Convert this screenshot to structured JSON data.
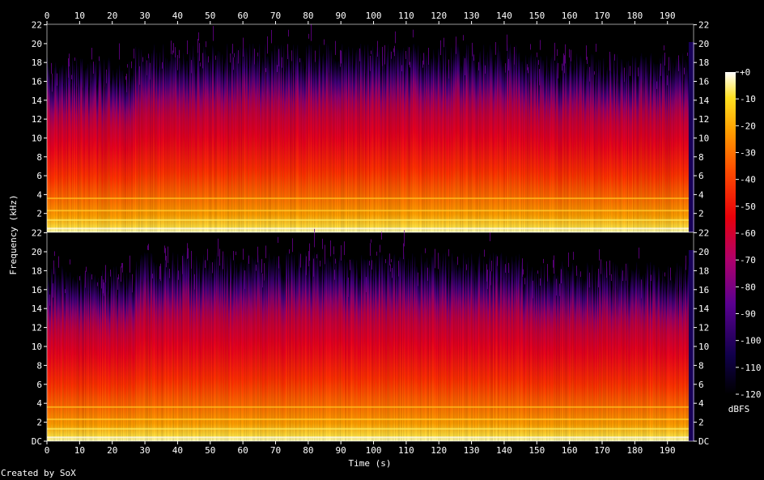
{
  "chart_data": {
    "type": "heatmap",
    "subtype": "spectrogram",
    "channels": 2,
    "x": {
      "label": "Time (s)",
      "range": [
        0,
        198
      ],
      "ticks": [
        0,
        10,
        20,
        30,
        40,
        50,
        60,
        70,
        80,
        90,
        100,
        110,
        120,
        130,
        140,
        150,
        160,
        170,
        180,
        190
      ]
    },
    "y": {
      "label": "Frequency (kHz)",
      "range": [
        0,
        22.05
      ],
      "ticks": [
        "DC",
        "2",
        "4",
        "6",
        "8",
        "10",
        "12",
        "14",
        "16",
        "18",
        "20",
        "22"
      ],
      "tick_values": [
        0,
        2,
        4,
        6,
        8,
        10,
        12,
        14,
        16,
        18,
        20,
        22
      ]
    },
    "colorbar": {
      "label": "dBFS",
      "range": [
        -120,
        0
      ],
      "ticks": [
        "+0",
        "-10",
        "-20",
        "-30",
        "-40",
        "-50",
        "-60",
        "-70",
        "-80",
        "-90",
        "-100",
        "-110",
        "-120"
      ]
    },
    "audio_end_s": 196.5,
    "lowpass_cutoff_khz": [
      {
        "t": [
          0,
          27
        ],
        "khz": 18.5
      },
      {
        "t": [
          27,
          66
        ],
        "khz": 20
      },
      {
        "t": [
          66,
          120
        ],
        "khz": 20
      },
      {
        "t": [
          120,
          145
        ],
        "khz": 20
      },
      {
        "t": [
          145,
          196
        ],
        "khz": 19
      }
    ],
    "energy_segments": [
      {
        "t": [
          0,
          27
        ],
        "level": "medium"
      },
      {
        "t": [
          27,
          66
        ],
        "level": "high"
      },
      {
        "t": [
          66,
          118
        ],
        "level": "high"
      },
      {
        "t": [
          118,
          145
        ],
        "level": "medium"
      },
      {
        "t": [
          145,
          196
        ],
        "level": "medium"
      }
    ],
    "credit": "Created by SoX"
  }
}
